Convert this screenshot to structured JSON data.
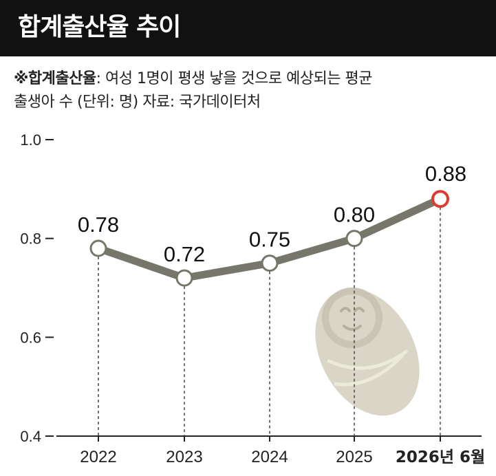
{
  "header": {
    "title": "합계출산율 추이"
  },
  "note": {
    "term": "※합계출산율",
    "definition": ": 여성 1명이 평생 낳을 것으로 예상되는 평균",
    "line2": "출생아 수 (단위: 명) 자료: 국가데이터처"
  },
  "colors": {
    "line": "#76766a",
    "highlight": "#e03a2f",
    "title_bg": "#111111",
    "illustration": "#d9d5c7"
  },
  "illustration": "swaddled-baby-icon",
  "chart_data": {
    "type": "line",
    "categories": [
      "2022",
      "2023",
      "2024",
      "2025",
      "2026년 6월"
    ],
    "values": [
      0.78,
      0.72,
      0.75,
      0.8,
      0.88
    ],
    "value_labels": [
      "0.78",
      "0.72",
      "0.75",
      "0.80",
      "0.88"
    ],
    "highlight_index": 4,
    "ylim": [
      0.4,
      1.0
    ],
    "yticks": [
      0.4,
      0.6,
      0.8,
      1.0
    ],
    "ytick_labels": [
      "0.4",
      "0.6",
      "0.8",
      "1.0"
    ],
    "grid": false
  }
}
